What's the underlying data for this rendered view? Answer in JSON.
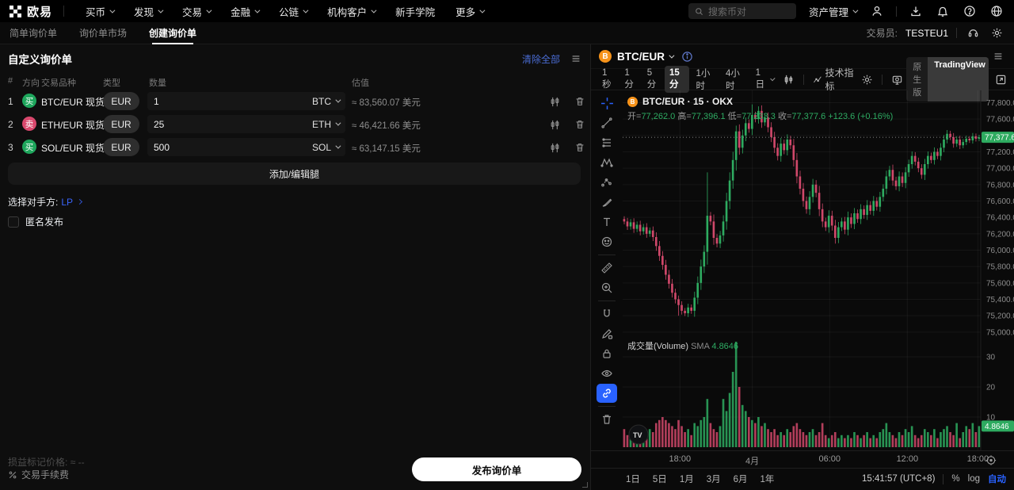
{
  "icons": {
    "hamburger": "≡"
  },
  "topnav": {
    "logo_text": "欧易",
    "items": [
      {
        "label": "买币",
        "caret": true
      },
      {
        "label": "发现",
        "caret": true
      },
      {
        "label": "交易",
        "caret": true
      },
      {
        "label": "金融",
        "caret": true
      },
      {
        "label": "公链",
        "caret": true
      },
      {
        "label": "机构客户",
        "caret": true
      },
      {
        "label": "新手学院",
        "caret": false
      },
      {
        "label": "更多",
        "caret": true
      }
    ],
    "search_placeholder": "搜索币对",
    "asset_mgmt": "资产管理"
  },
  "subnav": {
    "tabs": [
      {
        "label": "简单询价单",
        "active": false
      },
      {
        "label": "询价单市场",
        "active": false
      },
      {
        "label": "创建询价单",
        "active": true
      }
    ],
    "trader_label": "交易员:",
    "trader_value": "TESTEU1"
  },
  "rfq": {
    "title": "自定义询价单",
    "clear_all": "清除全部",
    "columns": {
      "idx": "#",
      "side": "方向",
      "pair": "交易品种",
      "type": "类型",
      "qty": "数量",
      "value": "估值"
    },
    "rows": [
      {
        "index": "1",
        "side": "买",
        "side_color": "#1ea65c",
        "pair": "BTC/EUR 现货",
        "type": "EUR",
        "qty": "1",
        "unit": "BTC",
        "value": "≈ 83,560.07 美元"
      },
      {
        "index": "2",
        "side": "卖",
        "side_color": "#d9486d",
        "pair": "ETH/EUR 现货",
        "type": "EUR",
        "qty": "25",
        "unit": "ETH",
        "value": "≈ 46,421.66 美元"
      },
      {
        "index": "3",
        "side": "买",
        "side_color": "#1ea65c",
        "pair": "SOL/EUR 现货",
        "type": "EUR",
        "qty": "500",
        "unit": "SOL",
        "value": "≈ 63,147.15 美元"
      }
    ],
    "add_leg": "添加/编辑腿",
    "counterparty_label": "选择对手方:",
    "counterparty_value": "LP",
    "anonymous_label": "匿名发布",
    "pnl_mark_label": "损益标记价格:",
    "pnl_mark_value": "≈ --",
    "fee_label": "交易手续费",
    "submit_label": "发布询价单"
  },
  "chart": {
    "symbol": "BTC/EUR",
    "coin_letter": "B",
    "timeframes": [
      "1秒",
      "1分",
      "5分",
      "15分",
      "1小时",
      "4小时",
      "1日"
    ],
    "selected_timeframe": "15分",
    "indicators_label": "技术指标",
    "version_native": "原生版",
    "version_tv": "TradingView",
    "legend_title": "BTC/EUR · 15 · OKX",
    "ohlc": {
      "open_label": "开=",
      "open": "77,262.0",
      "high_label": "高=",
      "high": "77,396.1",
      "low_label": "低=",
      "low": "77,233.3",
      "close_label": "收=",
      "close": "77,377.6",
      "change": "+123.6 (+0.16%)"
    },
    "volume_label": "成交量(Volume)",
    "sma_label": "SMA",
    "sma_value": "4.8646",
    "price_badge": "77,377.6",
    "volume_badge": "4.8646",
    "watermark": "TV",
    "bottom_ranges": [
      "1日",
      "5日",
      "1月",
      "3月",
      "6月",
      "1年"
    ],
    "clock": "15:41:57 (UTC+8)",
    "percent_label": "%",
    "log_label": "log",
    "auto_label": "自动",
    "chart_data": {
      "type": "candlestick",
      "symbol": "BTC/EUR",
      "interval": "15m",
      "exchange": "OKX",
      "last_price": 77377.6,
      "open_first": 76380,
      "up_color": "#2eab60",
      "down_color": "#d0486a",
      "price_axis": {
        "max": 77950,
        "min": 74950,
        "ticks": [
          77800,
          77600,
          77400,
          77200,
          77000,
          76800,
          76600,
          76400,
          76200,
          76000,
          75800,
          75600,
          75400,
          75200,
          75000
        ]
      },
      "volume_axis": {
        "ticks": [
          30,
          20,
          10
        ]
      },
      "x_axis_labels": [
        {
          "label": "18:00",
          "pos": 0.16
        },
        {
          "label": "4月",
          "pos": 0.362
        },
        {
          "label": "06:00",
          "pos": 0.578
        },
        {
          "label": "12:00",
          "pos": 0.795
        },
        {
          "label": "18:00",
          "pos": 0.992
        }
      ],
      "closes": [
        76350,
        76290,
        76340,
        76260,
        76310,
        76230,
        76280,
        76200,
        76240,
        76160,
        76050,
        75930,
        75820,
        75700,
        75590,
        75480,
        75400,
        75330,
        75260,
        75230,
        75300,
        75260,
        75420,
        75600,
        75800,
        75980,
        76420,
        76350,
        76150,
        76080,
        76180,
        76350,
        76600,
        76850,
        77100,
        77450,
        77250,
        77400,
        77550,
        77480,
        77650,
        77600,
        77700,
        77560,
        77620,
        77500,
        77380,
        77250,
        77150,
        77300,
        77220,
        77350,
        77280,
        77100,
        76900,
        76750,
        76600,
        76500,
        76650,
        76800,
        76700,
        76500,
        76350,
        76280,
        76420,
        76300,
        76150,
        76280,
        76350,
        76250,
        76400,
        76320,
        76450,
        76380,
        76500,
        76430,
        76550,
        76480,
        76600,
        76530,
        76650,
        76750,
        76900,
        76980,
        76850,
        76780,
        76900,
        76820,
        76950,
        77050,
        77150,
        77080,
        77000,
        76920,
        77050,
        77150,
        77100,
        77200,
        77150,
        77250,
        77350,
        77420,
        77380,
        77300,
        77350,
        77280,
        77320,
        77360,
        77340,
        77390,
        77360,
        77377.6
      ],
      "volumes": [
        6,
        4,
        5,
        3,
        4,
        5,
        3,
        4,
        6,
        5,
        8,
        9,
        10,
        9,
        8,
        7,
        6,
        9,
        7,
        5,
        6,
        4,
        8,
        7,
        9,
        10,
        16,
        8,
        6,
        5,
        7,
        16,
        12,
        18,
        25,
        35,
        20,
        14,
        12,
        10,
        9,
        8,
        10,
        7,
        8,
        6,
        5,
        6,
        4,
        5,
        4,
        6,
        5,
        7,
        8,
        6,
        5,
        4,
        5,
        6,
        4,
        5,
        8,
        4,
        3,
        4,
        5,
        3,
        4,
        3,
        4,
        3,
        5,
        4,
        3,
        4,
        5,
        3,
        4,
        3,
        5,
        6,
        8,
        5,
        4,
        3,
        5,
        4,
        6,
        5,
        7,
        4,
        3,
        4,
        6,
        5,
        4,
        6,
        3,
        5,
        6,
        7,
        5,
        4,
        8,
        3,
        5,
        7,
        6,
        8,
        5,
        7
      ],
      "wick_overrides": {
        "17": {
          "low": 75200
        },
        "26": {
          "high": 76950
        },
        "35": {
          "high": 77520
        },
        "40": {
          "high": 77780
        }
      }
    }
  }
}
